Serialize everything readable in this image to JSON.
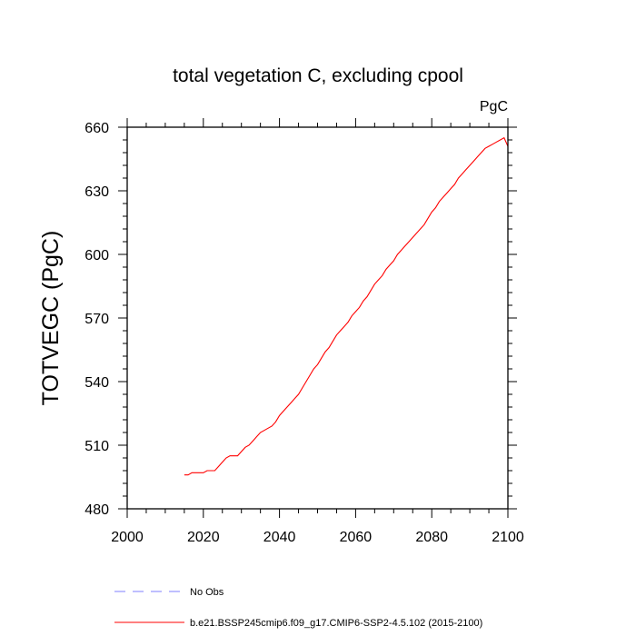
{
  "chart_data": {
    "type": "line",
    "title": "total vegetation C, excluding cpool",
    "units_label": "PgC",
    "xlabel": "",
    "ylabel": "TOTVEGC  (PgC)",
    "xlim": [
      2000,
      2100
    ],
    "ylim": [
      480,
      660
    ],
    "x_ticks": [
      2000,
      2020,
      2040,
      2060,
      2080,
      2100
    ],
    "y_ticks": [
      480,
      510,
      540,
      570,
      600,
      630,
      660
    ],
    "grid": false,
    "legend_position": "bottom",
    "series": [
      {
        "name": "No Obs",
        "color": "#7f7fff",
        "style": "dashed",
        "x": [],
        "y": []
      },
      {
        "name": "b.e21.BSSP245cmip6.f09_g17.CMIP6-SSP2-4.5.102 (2015-2100)",
        "color": "#ff0000",
        "style": "solid",
        "x": [
          2015,
          2016,
          2017,
          2018,
          2019,
          2020,
          2021,
          2022,
          2023,
          2024,
          2025,
          2026,
          2027,
          2028,
          2029,
          2030,
          2031,
          2032,
          2033,
          2034,
          2035,
          2036,
          2037,
          2038,
          2039,
          2040,
          2041,
          2042,
          2043,
          2044,
          2045,
          2046,
          2047,
          2048,
          2049,
          2050,
          2051,
          2052,
          2053,
          2054,
          2055,
          2056,
          2057,
          2058,
          2059,
          2060,
          2061,
          2062,
          2063,
          2064,
          2065,
          2066,
          2067,
          2068,
          2069,
          2070,
          2071,
          2072,
          2073,
          2074,
          2075,
          2076,
          2077,
          2078,
          2079,
          2080,
          2081,
          2082,
          2083,
          2084,
          2085,
          2086,
          2087,
          2088,
          2089,
          2090,
          2091,
          2092,
          2093,
          2094,
          2095,
          2096,
          2097,
          2098,
          2099,
          2100
        ],
        "y": [
          496,
          496,
          497,
          497,
          497,
          497,
          498,
          498,
          498,
          500,
          502,
          504,
          505,
          505,
          505,
          507,
          509,
          510,
          512,
          514,
          516,
          517,
          518,
          519,
          521,
          524,
          526,
          528,
          530,
          532,
          534,
          537,
          540,
          543,
          546,
          548,
          551,
          554,
          556,
          559,
          562,
          564,
          566,
          568,
          571,
          573,
          575,
          578,
          580,
          583,
          586,
          588,
          590,
          593,
          595,
          597,
          600,
          602,
          604,
          606,
          608,
          610,
          612,
          614,
          617,
          620,
          622,
          625,
          627,
          629,
          631,
          633,
          636,
          638,
          640,
          642,
          644,
          646,
          648,
          650,
          651,
          652,
          653,
          654,
          655,
          651
        ]
      }
    ]
  }
}
